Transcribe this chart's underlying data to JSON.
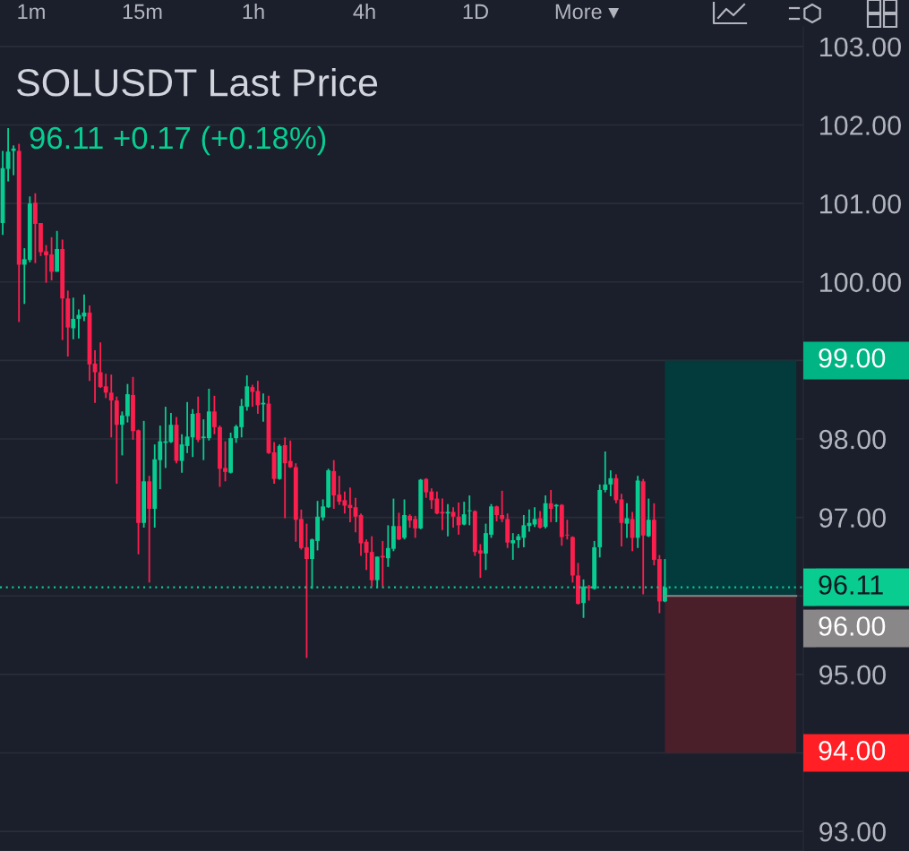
{
  "chart_data": {
    "type": "candlestick",
    "title": "SOLUSDT Last Price",
    "subtitle": "96.11 +0.17 (+0.18%)",
    "annotations": [
      "1m",
      "15m",
      "1h",
      "4h",
      "1D",
      "More ▾"
    ],
    "categories": [
      null,
      null,
      null,
      null,
      null,
      null,
      null,
      null,
      null,
      null,
      null,
      null,
      null,
      null,
      null,
      null,
      null,
      null,
      null,
      null,
      null,
      null,
      null,
      null,
      null,
      null,
      null,
      null,
      null,
      null,
      null,
      null,
      null,
      null,
      null,
      null,
      null,
      null,
      null,
      null,
      null,
      null,
      null,
      null,
      null,
      null,
      null,
      null,
      null,
      null,
      null,
      null,
      null,
      null,
      null,
      null,
      null,
      null,
      null,
      null,
      null,
      null,
      null,
      null,
      null,
      null,
      null,
      null,
      null,
      null,
      null,
      null,
      null,
      null,
      null,
      null,
      null,
      null,
      null,
      null,
      null,
      null,
      null,
      null,
      null,
      null,
      null,
      null,
      null,
      null,
      null,
      null,
      null,
      null,
      null,
      null,
      null,
      null,
      null,
      null,
      null,
      null,
      null,
      null,
      null,
      null,
      null,
      null,
      null,
      null,
      null,
      null,
      null,
      null,
      null,
      null,
      null,
      null,
      null,
      null,
      null,
      null,
      null,
      null,
      null,
      null,
      null,
      null,
      null,
      null,
      null,
      null,
      null,
      null,
      null,
      null,
      null,
      null,
      null,
      null,
      null,
      null,
      null,
      null,
      null,
      null,
      null,
      null
    ],
    "ohlc": [
      [
        100.75,
        101.67,
        100.6,
        101.45
      ],
      [
        101.44,
        101.96,
        101.28,
        101.66
      ],
      [
        101.67,
        101.74,
        101.36,
        101.7
      ],
      [
        101.67,
        101.76,
        99.49,
        100.22
      ],
      [
        100.22,
        100.43,
        99.72,
        100.29
      ],
      [
        100.28,
        101.09,
        100.25,
        101.0
      ],
      [
        101.01,
        101.13,
        100.24,
        100.74
      ],
      [
        100.75,
        100.75,
        100.33,
        100.38
      ],
      [
        100.39,
        100.47,
        99.99,
        100.34
      ],
      [
        100.35,
        100.57,
        100.02,
        100.13
      ],
      [
        100.13,
        100.65,
        100.13,
        100.42
      ],
      [
        100.42,
        100.54,
        99.26,
        99.79
      ],
      [
        99.79,
        99.89,
        99.05,
        99.42
      ],
      [
        99.41,
        99.8,
        99.27,
        99.53
      ],
      [
        99.53,
        99.65,
        99.28,
        99.58
      ],
      [
        99.56,
        99.84,
        99.5,
        99.61
      ],
      [
        99.61,
        99.7,
        98.74,
        98.95
      ],
      [
        98.96,
        99.13,
        98.46,
        98.85
      ],
      [
        98.85,
        99.23,
        98.65,
        98.66
      ],
      [
        98.67,
        98.83,
        98.52,
        98.59
      ],
      [
        98.59,
        98.82,
        98.02,
        98.49
      ],
      [
        98.49,
        98.54,
        97.43,
        98.18
      ],
      [
        98.18,
        98.35,
        97.79,
        98.3
      ],
      [
        98.29,
        98.7,
        98.21,
        98.57
      ],
      [
        98.56,
        98.79,
        97.99,
        98.1
      ],
      [
        98.11,
        98.12,
        96.53,
        96.93
      ],
      [
        96.93,
        98.23,
        96.87,
        97.46
      ],
      [
        97.46,
        97.53,
        96.17,
        97.11
      ],
      [
        97.11,
        97.93,
        96.87,
        97.74
      ],
      [
        97.73,
        98.17,
        97.36,
        97.97
      ],
      [
        97.95,
        98.41,
        97.63,
        97.97
      ],
      [
        97.96,
        98.33,
        97.95,
        98.18
      ],
      [
        98.18,
        98.28,
        97.69,
        97.72
      ],
      [
        97.72,
        98.06,
        97.57,
        97.93
      ],
      [
        97.91,
        98.47,
        97.82,
        98.03
      ],
      [
        98.02,
        98.38,
        97.77,
        98.32
      ],
      [
        98.33,
        98.54,
        97.96,
        97.99
      ],
      [
        98.01,
        98.25,
        97.73,
        98.03
      ],
      [
        98.01,
        98.64,
        97.98,
        98.35
      ],
      [
        98.35,
        98.55,
        98.06,
        98.15
      ],
      [
        98.15,
        98.17,
        97.39,
        97.62
      ],
      [
        97.63,
        97.97,
        97.46,
        97.58
      ],
      [
        97.57,
        98.08,
        97.56,
        98.01
      ],
      [
        98.01,
        98.18,
        97.95,
        98.16
      ],
      [
        98.15,
        98.51,
        98.02,
        98.42
      ],
      [
        98.41,
        98.81,
        98.36,
        98.67
      ],
      [
        98.66,
        98.69,
        98.41,
        98.6
      ],
      [
        98.61,
        98.74,
        98.32,
        98.43
      ],
      [
        98.44,
        98.58,
        98.22,
        98.46
      ],
      [
        98.45,
        98.55,
        97.81,
        97.82
      ],
      [
        97.83,
        97.96,
        97.43,
        97.49
      ],
      [
        97.49,
        97.93,
        97.48,
        97.91
      ],
      [
        97.92,
        98.02,
        96.99,
        97.69
      ],
      [
        97.72,
        97.98,
        97.63,
        97.64
      ],
      [
        97.64,
        97.69,
        96.69,
        96.97
      ],
      [
        96.98,
        97.1,
        96.59,
        96.61
      ],
      [
        96.62,
        96.92,
        95.21,
        96.47
      ],
      [
        96.47,
        96.73,
        96.09,
        96.72
      ],
      [
        96.7,
        97.21,
        96.58,
        97.01
      ],
      [
        97.0,
        97.23,
        96.96,
        97.14
      ],
      [
        97.13,
        97.62,
        97.12,
        97.6
      ],
      [
        97.59,
        97.73,
        97.11,
        97.28
      ],
      [
        97.29,
        97.53,
        97.16,
        97.2
      ],
      [
        97.22,
        97.33,
        97.05,
        97.15
      ],
      [
        97.16,
        97.38,
        96.94,
        97.12
      ],
      [
        97.13,
        97.25,
        96.81,
        97.01
      ],
      [
        97.03,
        97.05,
        96.51,
        96.67
      ],
      [
        96.69,
        96.72,
        96.33,
        96.55
      ],
      [
        96.56,
        96.76,
        96.12,
        96.2
      ],
      [
        96.2,
        96.5,
        96.1,
        96.5
      ],
      [
        96.51,
        96.7,
        96.12,
        96.49
      ],
      [
        96.48,
        96.9,
        96.37,
        96.61
      ],
      [
        96.6,
        97.24,
        96.57,
        96.89
      ],
      [
        96.89,
        97.06,
        96.71,
        96.72
      ],
      [
        96.74,
        97.23,
        96.72,
        97.03
      ],
      [
        97.02,
        97.04,
        96.87,
        96.96
      ],
      [
        96.98,
        97.02,
        96.74,
        96.86
      ],
      [
        96.86,
        97.49,
        96.85,
        97.48
      ],
      [
        97.49,
        97.5,
        97.25,
        97.32
      ],
      [
        97.33,
        97.37,
        97.11,
        97.22
      ],
      [
        97.24,
        97.33,
        97.04,
        97.05
      ],
      [
        97.07,
        97.24,
        96.84,
        97.05
      ],
      [
        97.05,
        97.17,
        96.76,
        97.07
      ],
      [
        97.07,
        97.13,
        96.87,
        97.01
      ],
      [
        97.01,
        97.19,
        96.78,
        96.9
      ],
      [
        96.91,
        97.2,
        96.9,
        97.04
      ],
      [
        97.08,
        97.28,
        96.9,
        97.09
      ],
      [
        97.08,
        97.09,
        96.51,
        96.56
      ],
      [
        96.58,
        96.66,
        96.23,
        96.54
      ],
      [
        96.54,
        96.92,
        96.33,
        96.8
      ],
      [
        96.78,
        97.17,
        96.74,
        97.14
      ],
      [
        97.14,
        97.15,
        96.95,
        97.03
      ],
      [
        97.03,
        97.34,
        96.94,
        96.98
      ],
      [
        96.98,
        97.05,
        96.61,
        96.68
      ],
      [
        96.67,
        96.8,
        96.46,
        96.71
      ],
      [
        96.71,
        96.79,
        96.61,
        96.76
      ],
      [
        96.74,
        97.03,
        96.62,
        96.9
      ],
      [
        96.89,
        97.1,
        96.82,
        96.93
      ],
      [
        96.91,
        97.13,
        96.88,
        96.98
      ],
      [
        96.99,
        97.08,
        96.86,
        96.87
      ],
      [
        96.88,
        97.28,
        96.86,
        97.18
      ],
      [
        97.18,
        97.35,
        96.94,
        97.11
      ],
      [
        97.14,
        97.17,
        96.94,
        97.16
      ],
      [
        97.16,
        97.17,
        96.64,
        96.75
      ],
      [
        96.78,
        96.97,
        96.72,
        96.77
      ],
      [
        96.75,
        96.76,
        96.17,
        96.26
      ],
      [
        96.26,
        96.42,
        95.89,
        95.9
      ],
      [
        95.91,
        96.21,
        95.72,
        96.12
      ],
      [
        96.12,
        96.14,
        95.94,
        96.1
      ],
      [
        96.09,
        96.7,
        96.08,
        96.62
      ],
      [
        96.62,
        97.42,
        96.49,
        97.35
      ],
      [
        97.35,
        97.84,
        97.32,
        97.42
      ],
      [
        97.42,
        97.6,
        97.27,
        97.5
      ],
      [
        97.5,
        97.55,
        97.18,
        97.22
      ],
      [
        97.23,
        97.3,
        96.63,
        96.93
      ],
      [
        96.92,
        97.18,
        96.74,
        96.99
      ],
      [
        96.98,
        97.07,
        96.57,
        96.74
      ],
      [
        96.74,
        97.53,
        96.61,
        97.47
      ],
      [
        97.46,
        97.49,
        96.02,
        96.77
      ],
      [
        96.76,
        97.24,
        96.75,
        96.97
      ],
      [
        96.97,
        97.18,
        96.39,
        96.46
      ],
      [
        96.47,
        96.52,
        95.78,
        95.93
      ],
      [
        95.93,
        96.47,
        95.92,
        96.11
      ],
      null,
      null,
      null,
      null,
      null,
      null,
      null,
      null,
      null,
      null,
      null,
      null,
      null,
      null,
      null,
      null,
      null,
      null,
      null,
      null,
      null,
      null,
      null,
      null,
      null
    ],
    "colors": [
      "#08cc90",
      "#08cc90",
      "#08cc90",
      "#fc1f4e",
      "#08cc90",
      "#08cc90",
      "#fc1f4e",
      "#fc1f4e",
      "#fc1f4e",
      "#fc1f4e",
      "#08cc90",
      "#fc1f4e",
      "#fc1f4e",
      "#08cc90",
      "#08cc90",
      "#08cc90",
      "#fc1f4e",
      "#fc1f4e",
      "#fc1f4e",
      "#fc1f4e",
      "#fc1f4e",
      "#fc1f4e",
      "#08cc90",
      "#08cc90",
      "#fc1f4e",
      "#fc1f4e",
      "#08cc90",
      "#fc1f4e",
      "#08cc90",
      "#08cc90",
      "#08cc90",
      "#08cc90",
      "#fc1f4e",
      "#08cc90",
      "#08cc90",
      "#08cc90",
      "#fc1f4e",
      "#08cc90",
      "#08cc90",
      "#fc1f4e",
      "#fc1f4e",
      "#fc1f4e",
      "#08cc90",
      "#08cc90",
      "#08cc90",
      "#08cc90",
      "#fc1f4e",
      "#fc1f4e",
      "#08cc90",
      "#fc1f4e",
      "#fc1f4e",
      "#08cc90",
      "#fc1f4e",
      "#fc1f4e",
      "#fc1f4e",
      "#fc1f4e",
      "#fc1f4e",
      "#08cc90",
      "#08cc90",
      "#08cc90",
      "#08cc90",
      "#fc1f4e",
      "#fc1f4e",
      "#fc1f4e",
      "#fc1f4e",
      "#fc1f4e",
      "#fc1f4e",
      "#fc1f4e",
      "#fc1f4e",
      "#08cc90",
      "#fc1f4e",
      "#08cc90",
      "#08cc90",
      "#fc1f4e",
      "#08cc90",
      "#fc1f4e",
      "#fc1f4e",
      "#08cc90",
      "#fc1f4e",
      "#fc1f4e",
      "#fc1f4e",
      "#fc1f4e",
      "#08cc90",
      "#fc1f4e",
      "#fc1f4e",
      "#08cc90",
      "#08cc90",
      "#fc1f4e",
      "#fc1f4e",
      "#08cc90",
      "#08cc90",
      "#fc1f4e",
      "#fc1f4e",
      "#fc1f4e",
      "#08cc90",
      "#08cc90",
      "#08cc90",
      "#08cc90",
      "#08cc90",
      "#fc1f4e",
      "#08cc90",
      "#fc1f4e",
      "#08cc90",
      "#fc1f4e",
      "#fc1f4e",
      "#fc1f4e",
      "#fc1f4e",
      "#08cc90",
      "#fc1f4e",
      "#08cc90",
      "#08cc90",
      "#08cc90",
      "#08cc90",
      "#fc1f4e",
      "#fc1f4e",
      "#08cc90",
      "#fc1f4e",
      "#08cc90",
      "#fc1f4e",
      "#08cc90",
      "#fc1f4e",
      "#fc1f4e",
      "#08cc90",
      null,
      null,
      null,
      null,
      null,
      null,
      null,
      null,
      null,
      null,
      null,
      null,
      null,
      null,
      null,
      null,
      null,
      null,
      null,
      null,
      null,
      null,
      null,
      null,
      null
    ],
    "ylim": [
      92.75,
      103.25
    ],
    "yticks": [
      {
        "value": 93,
        "label": "93.00"
      },
      {
        "value": 94,
        "label": null
      },
      {
        "value": 95,
        "label": "95.00"
      },
      {
        "value": 96,
        "label": null
      },
      {
        "value": 97,
        "label": "97.00"
      },
      {
        "value": 98,
        "label": "98.00"
      },
      {
        "value": 99,
        "label": null
      },
      {
        "value": 100,
        "label": "100.00"
      },
      {
        "value": 101,
        "label": "101.00"
      },
      {
        "value": 102,
        "label": "102.00"
      },
      {
        "value": 103,
        "label": "103.00"
      }
    ],
    "tick_labels": "y",
    "grid": "y",
    "ref_lines": [
      {
        "axis": "y",
        "value": 96.11,
        "label": "96.11",
        "color": "#08cc90",
        "line_style": "dotted"
      },
      {
        "axis": "y",
        "value": 96.0,
        "label": "96.00",
        "color": "#8a8788",
        "line_style": "solid"
      }
    ],
    "bands": [
      {
        "axis": "y",
        "from": 96,
        "to": 99,
        "label": "99.00",
        "color": "#033a3b"
      },
      {
        "axis": "y",
        "from": 96,
        "to": 94,
        "label": "94.00",
        "color": "#4a1f2a"
      }
    ]
  }
}
